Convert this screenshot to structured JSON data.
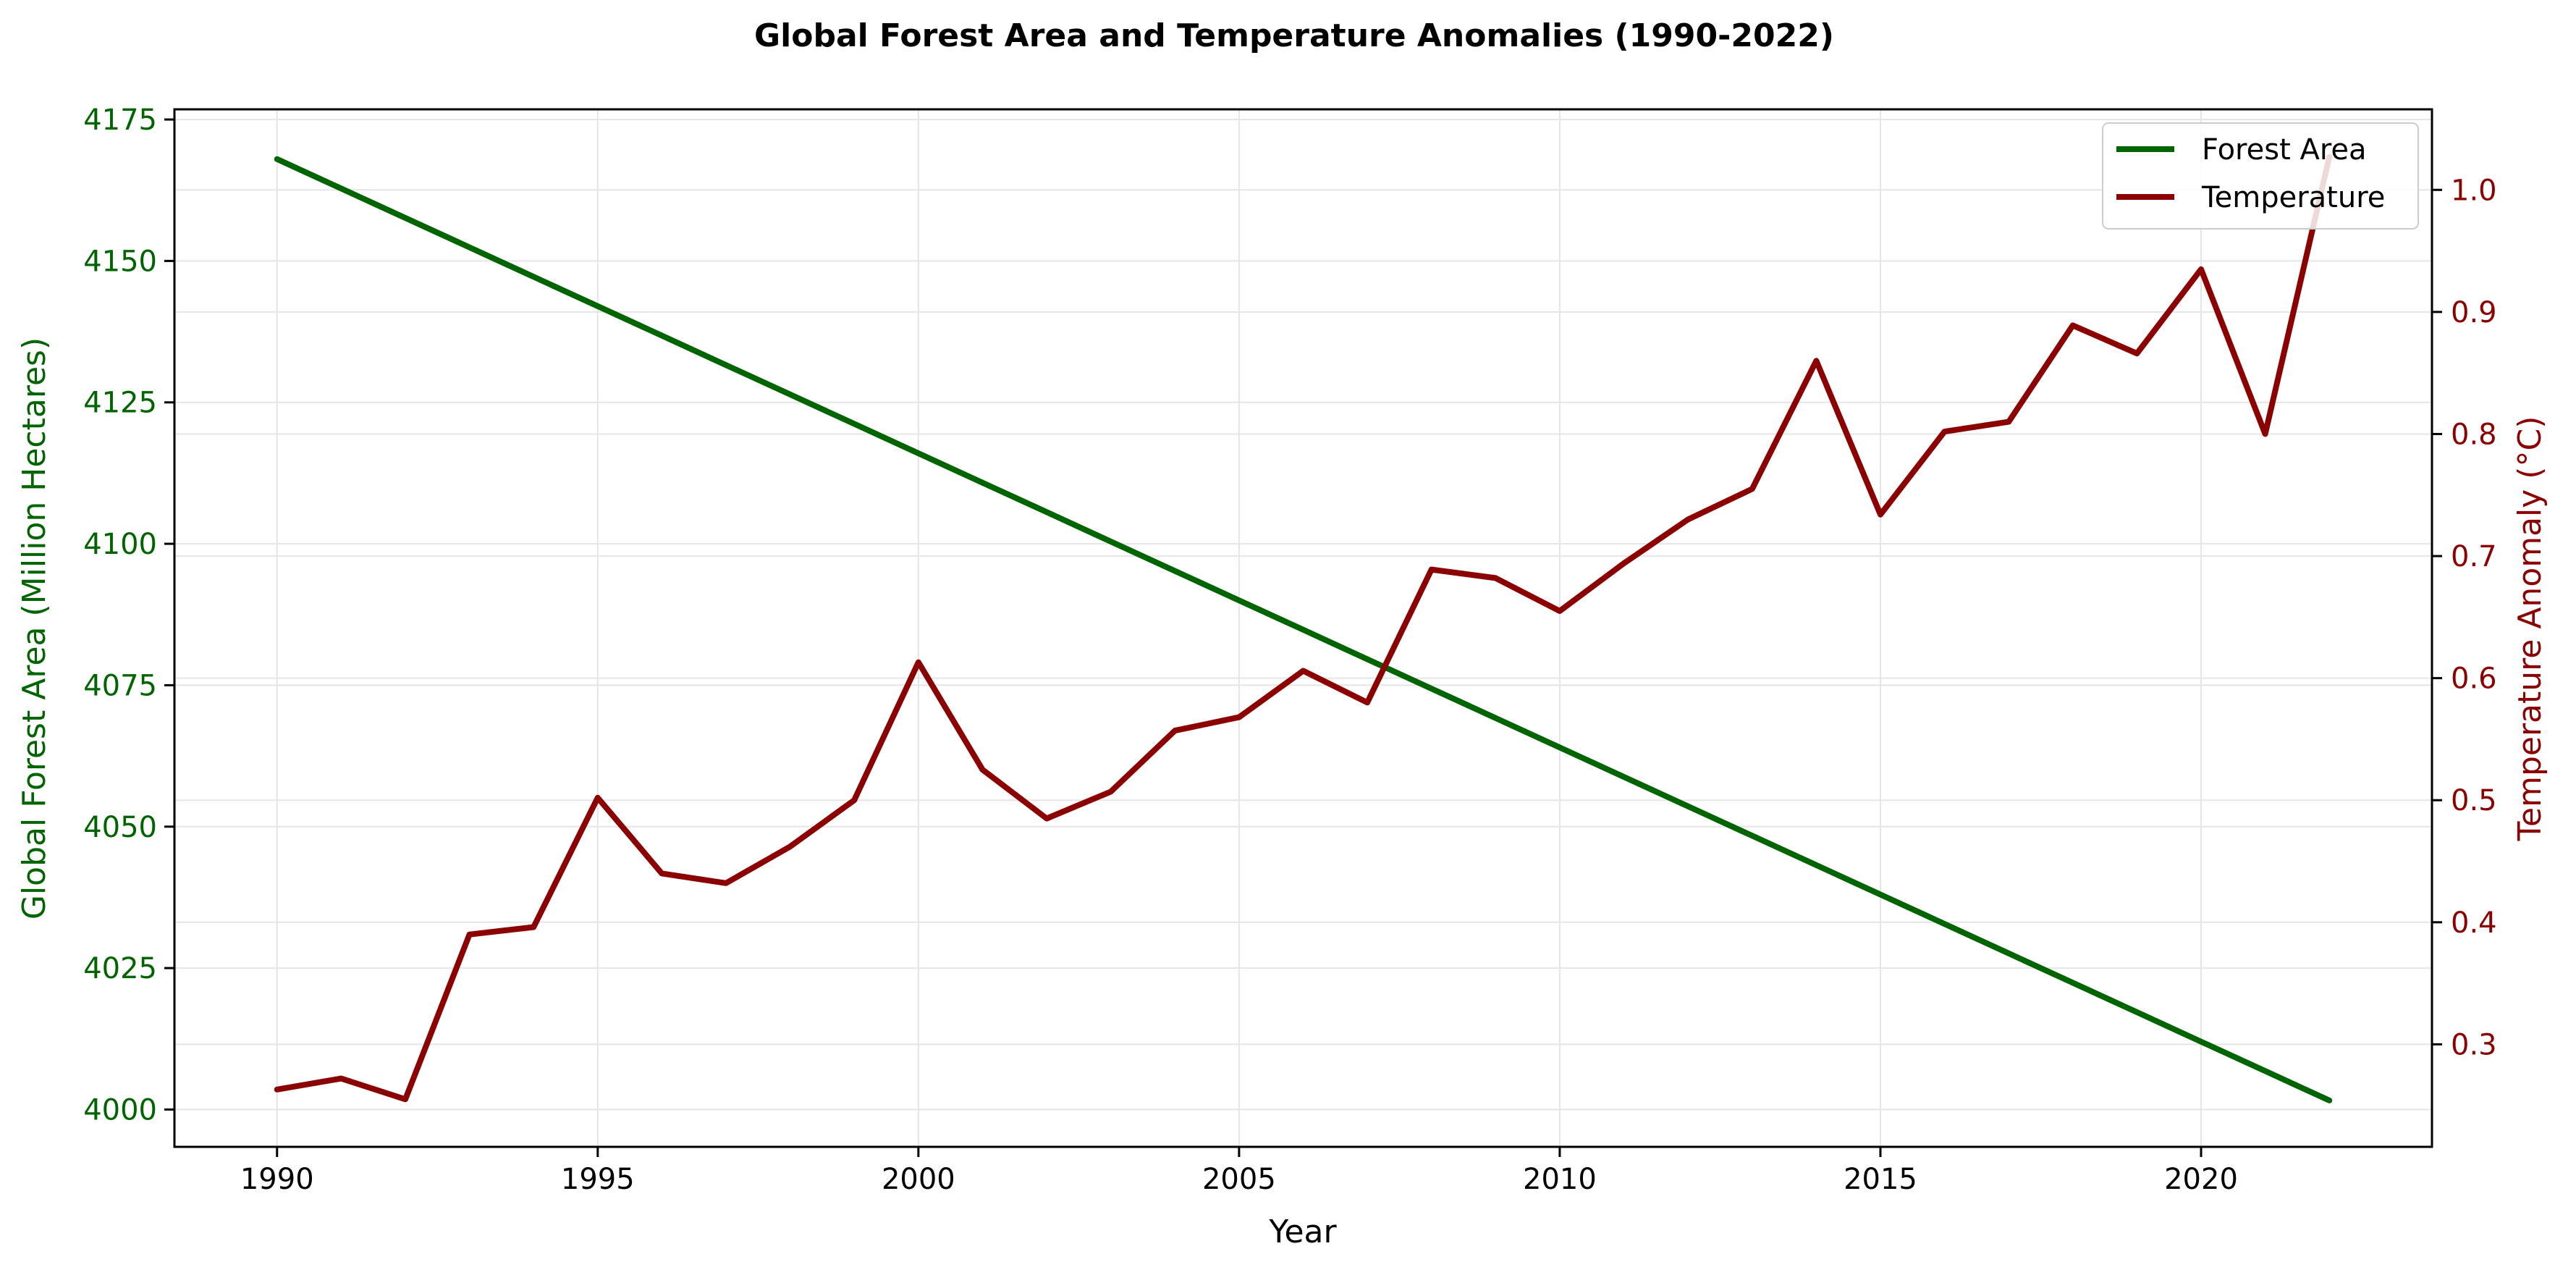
{
  "chart_data": {
    "type": "line",
    "title": "Global Forest Area and Temperature Anomalies (1990-2022)",
    "xlabel": "Year",
    "ylabel_left": "Global Forest Area (Million Hectares)",
    "ylabel_right": "Temperature Anomaly (°C)",
    "xlim": [
      1988.4,
      2023.6
    ],
    "ylim_left": [
      3993.4,
      4176.8
    ],
    "ylim_right": [
      0.216,
      1.066
    ],
    "x_ticks": [
      1990,
      1995,
      2000,
      2005,
      2010,
      2015,
      2020
    ],
    "y_left_ticks": [
      4000,
      4025,
      4050,
      4075,
      4100,
      4125,
      4150,
      4175
    ],
    "y_right_ticks": [
      "0.3",
      "0.4",
      "0.5",
      "0.6",
      "0.7",
      "0.8",
      "0.9",
      "1.0"
    ],
    "grid": true,
    "legend_position": "top-right",
    "colors": {
      "forest": "#006400",
      "temperature": "#8b0000",
      "grid": "#e5e5e5",
      "axes": "#000000"
    },
    "x": [
      1990,
      1991,
      1992,
      1993,
      1994,
      1995,
      1996,
      1997,
      1998,
      1999,
      2000,
      2001,
      2002,
      2003,
      2004,
      2005,
      2006,
      2007,
      2008,
      2009,
      2010,
      2011,
      2012,
      2013,
      2014,
      2015,
      2016,
      2017,
      2018,
      2019,
      2020,
      2021,
      2022
    ],
    "series": [
      {
        "name": "Forest Area",
        "axis": "left",
        "color": "#006400",
        "values": [
          4168.0,
          4162.8,
          4157.6,
          4152.4,
          4147.2,
          4142.0,
          4136.8,
          4131.6,
          4126.4,
          4121.2,
          4116.0,
          4110.8,
          4105.6,
          4100.4,
          4095.2,
          4090.0,
          4084.8,
          4079.6,
          4074.4,
          4069.2,
          4064.0,
          4058.8,
          4053.6,
          4048.4,
          4043.2,
          4038.0,
          4032.8,
          4027.6,
          4022.4,
          4017.2,
          4012.0,
          4006.8,
          4001.6
        ]
      },
      {
        "name": "Temperature",
        "axis": "right",
        "color": "#8b0000",
        "values": [
          0.263,
          0.272,
          0.255,
          0.39,
          0.396,
          0.502,
          0.44,
          0.432,
          0.462,
          0.5,
          0.613,
          0.525,
          0.485,
          0.507,
          0.557,
          0.568,
          0.606,
          0.58,
          0.689,
          0.682,
          0.655,
          0.694,
          0.73,
          0.755,
          0.86,
          0.734,
          0.802,
          0.81,
          0.889,
          0.866,
          0.935,
          0.8,
          1.027
        ]
      }
    ]
  }
}
